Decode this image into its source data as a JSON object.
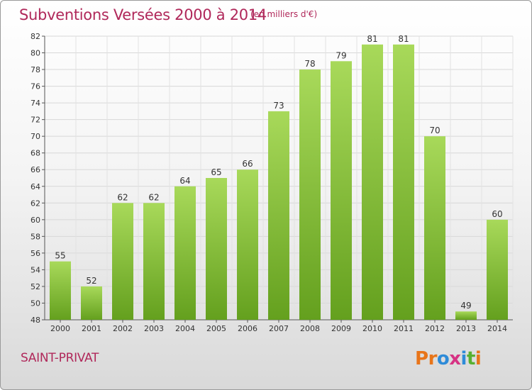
{
  "header": {
    "title": "Subventions Versées 2000 à 2014",
    "subtitle": "(en milliers d'€)"
  },
  "footer": {
    "city": "SAINT-PRIVAT",
    "logo_text": "Proxiti",
    "logo_colors": [
      "#e8751a",
      "#e8751a",
      "#2e8bd8",
      "#d63384",
      "#2e8bd8",
      "#58b030",
      "#e8751a"
    ]
  },
  "colors": {
    "accent": "#b0285a",
    "bar_light": "#a8d95a",
    "bar_dark": "#64a01e"
  },
  "chart_data": {
    "type": "bar",
    "title": "Subventions Versées 2000 à 2014",
    "subtitle": "(en milliers d'€)",
    "categories": [
      "2000",
      "2001",
      "2002",
      "2003",
      "2004",
      "2005",
      "2006",
      "2007",
      "2008",
      "2009",
      "2010",
      "2011",
      "2012",
      "2013",
      "2014"
    ],
    "values": [
      55,
      52,
      62,
      62,
      64,
      65,
      66,
      73,
      78,
      79,
      81,
      81,
      70,
      49,
      60
    ],
    "ylim": [
      48,
      82
    ],
    "yticks": [
      48,
      50,
      52,
      54,
      56,
      58,
      60,
      62,
      64,
      66,
      68,
      70,
      72,
      74,
      76,
      78,
      80,
      82
    ],
    "grid": true,
    "data_labels": true
  }
}
